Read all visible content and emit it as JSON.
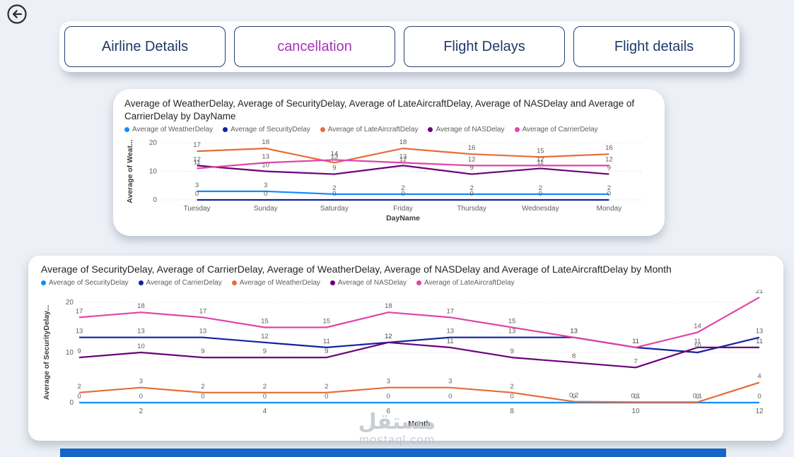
{
  "page": {
    "watermark_arabic": "مستقل",
    "watermark_latin": "mostaql.com"
  },
  "colors": {
    "nav_text": "#1F3A68",
    "nav_active": "#A435B3",
    "title_text": "#252423",
    "axis_text": "#605E5C",
    "bottom_bar": "#1266C8"
  },
  "icons": {
    "back": "back-arrow-icon"
  },
  "nav": {
    "items": [
      {
        "label": "Airline Details",
        "active": false
      },
      {
        "label": "cancellation",
        "active": true
      },
      {
        "label": "Flight Delays",
        "active": false
      },
      {
        "label": "Flight details",
        "active": false
      }
    ]
  },
  "chart_data": [
    {
      "type": "line",
      "title": "Average of WeatherDelay, Average of SecurityDelay, Average of LateAircraftDelay, Average of NASDelay and Average of CarrierDelay by DayName",
      "xlabel": "DayName",
      "ylabel": "Average of Weat...",
      "ylim": [
        0,
        20
      ],
      "yticks": [
        0,
        10,
        20
      ],
      "grid": "dashed-horizontal",
      "legend_position": "top",
      "categories": [
        "Tuesday",
        "Sunday",
        "Saturday",
        "Friday",
        "Thursday",
        "Wednesday",
        "Monday"
      ],
      "series": [
        {
          "name": "Average of WeatherDelay",
          "color": "#118DFF",
          "values": [
            3,
            3,
            2,
            2,
            2,
            2,
            2
          ]
        },
        {
          "name": "Average of SecurityDelay",
          "color": "#12239E",
          "values": [
            0,
            0,
            0,
            0,
            0,
            0,
            0
          ]
        },
        {
          "name": "Average of LateAircraftDelay",
          "color": "#E66C37",
          "values": [
            17,
            18,
            13,
            18,
            16,
            15,
            16
          ]
        },
        {
          "name": "Average of NASDelay",
          "color": "#6B007B",
          "values": [
            12,
            10,
            9,
            12,
            9,
            11,
            9
          ]
        },
        {
          "name": "Average of CarrierDelay",
          "color": "#E044A7",
          "values": [
            11,
            13,
            14,
            13,
            12,
            12,
            12
          ]
        }
      ]
    },
    {
      "type": "line",
      "title": "Average of SecurityDelay, Average of CarrierDelay, Average of WeatherDelay, Average of NASDelay and Average of LateAircraftDelay by Month",
      "xlabel": "Month",
      "ylabel": "Average of SecurityDelay...",
      "ylim": [
        0,
        20
      ],
      "yticks": [
        0,
        10,
        20
      ],
      "grid": "dashed-horizontal",
      "legend_position": "top",
      "x": [
        1,
        2,
        3,
        4,
        5,
        6,
        7,
        8,
        9,
        10,
        11,
        12
      ],
      "xticks": [
        2,
        4,
        6,
        8,
        10,
        12
      ],
      "series": [
        {
          "name": "Average of SecurityDelay",
          "color": "#118DFF",
          "values": [
            0,
            0,
            0,
            0,
            0,
            0,
            0,
            0,
            0,
            0,
            0,
            0
          ]
        },
        {
          "name": "Average of CarrierDelay",
          "color": "#12239E",
          "values": [
            13,
            13,
            13,
            12,
            11,
            12,
            13,
            13,
            13,
            11,
            10,
            13
          ]
        },
        {
          "name": "Average of WeatherDelay",
          "color": "#E66C37",
          "values": [
            2,
            3,
            2,
            2,
            2,
            3,
            3,
            2,
            0.2,
            0.1,
            0.1,
            4
          ]
        },
        {
          "name": "Average of NASDelay",
          "color": "#6B007B",
          "values": [
            9,
            10,
            9,
            9,
            9,
            12,
            11,
            9,
            8,
            7,
            11,
            11
          ]
        },
        {
          "name": "Average of LateAircraftDelay",
          "color": "#E044A7",
          "values": [
            17,
            18,
            17,
            15,
            15,
            18,
            17,
            15,
            13,
            11,
            14,
            21
          ]
        }
      ]
    }
  ]
}
